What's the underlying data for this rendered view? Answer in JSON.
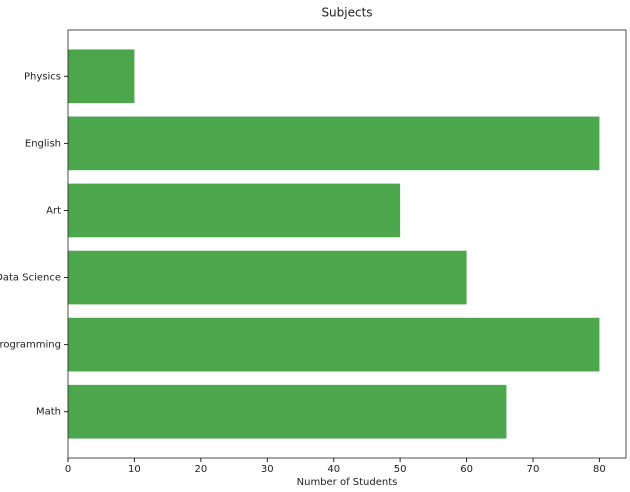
{
  "chart_data": {
    "type": "barh",
    "title": "Subjects",
    "xlabel": "Number of Students",
    "categories": [
      "Math",
      "Programming",
      "Data Science",
      "Art",
      "English",
      "Physics"
    ],
    "values": [
      66,
      80,
      60,
      50,
      80,
      10
    ],
    "color": "#4ca64c",
    "xlim": [
      0,
      84
    ],
    "xticks": [
      0,
      10,
      20,
      30,
      40,
      50,
      60,
      70,
      80
    ],
    "grid": false
  }
}
